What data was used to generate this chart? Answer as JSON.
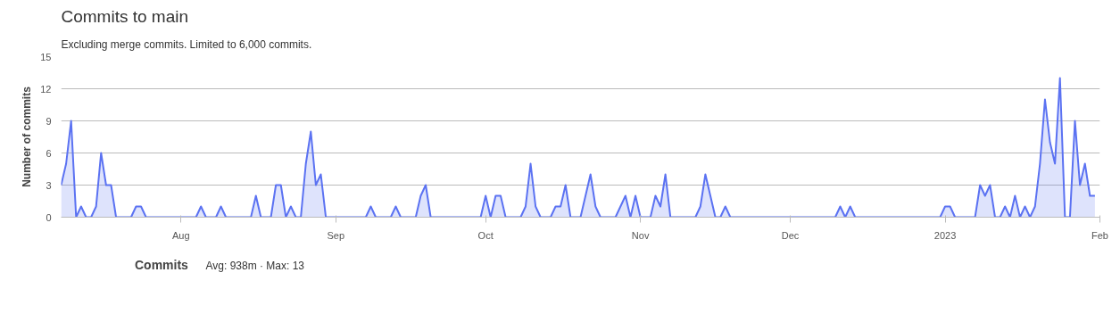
{
  "chart_data": {
    "type": "area",
    "title": "Commits to main",
    "subtitle": "Excluding merge commits. Limited to 6,000 commits.",
    "ylabel": "Number of commits",
    "annotations": [
      "Avg: 938m · Max: 13"
    ],
    "x": [
      "2022-07-08",
      "2022-07-09",
      "2022-07-10",
      "2022-07-11",
      "2022-07-12",
      "2022-07-13",
      "2022-07-14",
      "2022-07-15",
      "2022-07-16",
      "2022-07-17",
      "2022-07-18",
      "2022-07-19",
      "2022-07-22",
      "2022-07-23",
      "2022-07-24",
      "2022-07-25",
      "2022-08-04",
      "2022-08-05",
      "2022-08-06",
      "2022-08-08",
      "2022-08-09",
      "2022-08-10",
      "2022-08-15",
      "2022-08-16",
      "2022-08-17",
      "2022-08-19",
      "2022-08-20",
      "2022-08-21",
      "2022-08-22",
      "2022-08-23",
      "2022-08-24",
      "2022-08-25",
      "2022-08-26",
      "2022-08-27",
      "2022-08-28",
      "2022-08-29",
      "2022-08-30",
      "2022-09-07",
      "2022-09-08",
      "2022-09-09",
      "2022-09-12",
      "2022-09-13",
      "2022-09-14",
      "2022-09-17",
      "2022-09-18",
      "2022-09-19",
      "2022-09-20",
      "2022-09-30",
      "2022-10-01",
      "2022-10-02",
      "2022-10-03",
      "2022-10-04",
      "2022-10-05",
      "2022-10-08",
      "2022-10-09",
      "2022-10-10",
      "2022-10-11",
      "2022-10-12",
      "2022-10-14",
      "2022-10-15",
      "2022-10-16",
      "2022-10-17",
      "2022-10-18",
      "2022-10-20",
      "2022-10-22",
      "2022-10-23",
      "2022-10-24",
      "2022-10-27",
      "2022-10-29",
      "2022-10-30",
      "2022-10-31",
      "2022-11-01",
      "2022-11-03",
      "2022-11-04",
      "2022-11-05",
      "2022-11-06",
      "2022-11-07",
      "2022-11-12",
      "2022-11-13",
      "2022-11-14",
      "2022-11-15",
      "2022-11-16",
      "2022-11-17",
      "2022-11-18",
      "2022-11-19",
      "2022-12-10",
      "2022-12-11",
      "2022-12-12",
      "2022-12-13",
      "2022-12-14",
      "2022-12-31",
      "2023-01-01",
      "2023-01-02",
      "2023-01-03",
      "2023-01-07",
      "2023-01-08",
      "2023-01-09",
      "2023-01-10",
      "2023-01-11",
      "2023-01-12",
      "2023-01-13",
      "2023-01-14",
      "2023-01-15",
      "2023-01-16",
      "2023-01-17",
      "2023-01-18",
      "2023-01-19",
      "2023-01-20",
      "2023-01-21",
      "2023-01-22",
      "2023-01-23",
      "2023-01-24",
      "2023-01-25",
      "2023-01-26",
      "2023-01-27",
      "2023-01-28",
      "2023-01-29",
      "2023-01-30",
      "2023-01-31"
    ],
    "series": [
      {
        "name": "Commits",
        "color": "#5b72f2",
        "values": [
          3,
          5,
          9,
          0,
          1,
          0,
          0,
          1,
          6,
          3,
          3,
          0,
          0,
          1,
          1,
          0,
          0,
          1,
          0,
          0,
          1,
          0,
          0,
          2,
          0,
          0,
          3,
          3,
          0,
          1,
          0,
          0,
          5,
          8,
          3,
          4,
          0,
          0,
          1,
          0,
          0,
          1,
          0,
          0,
          2,
          3,
          0,
          0,
          2,
          0,
          2,
          2,
          0,
          0,
          1,
          5,
          1,
          0,
          0,
          1,
          1,
          3,
          0,
          0,
          4,
          1,
          0,
          0,
          2,
          0,
          2,
          0,
          0,
          2,
          1,
          4,
          0,
          0,
          1,
          4,
          2,
          0,
          0,
          1,
          0,
          0,
          1,
          0,
          1,
          0,
          0,
          1,
          1,
          0,
          0,
          3,
          2,
          3,
          0,
          0,
          1,
          0,
          2,
          0,
          1,
          0,
          1,
          5,
          11,
          7,
          5,
          13,
          0,
          0,
          9,
          3,
          5,
          2,
          2
        ]
      }
    ],
    "xlim": [
      "2022-07-08",
      "2023-02-01"
    ],
    "xticks": [
      {
        "value": "2022-08-01",
        "label": "Aug"
      },
      {
        "value": "2022-09-01",
        "label": "Sep"
      },
      {
        "value": "2022-10-01",
        "label": "Oct"
      },
      {
        "value": "2022-11-01",
        "label": "Nov"
      },
      {
        "value": "2022-12-01",
        "label": "Dec"
      },
      {
        "value": "2023-01-01",
        "label": "2023"
      },
      {
        "value": "2023-02-01",
        "label": "Feb"
      }
    ],
    "ylim": [
      0,
      15
    ],
    "yticks": [
      0,
      3,
      6,
      9,
      12,
      15
    ],
    "grid": "y",
    "legend": "bottom left",
    "marker": "none",
    "line_style": "solid"
  }
}
